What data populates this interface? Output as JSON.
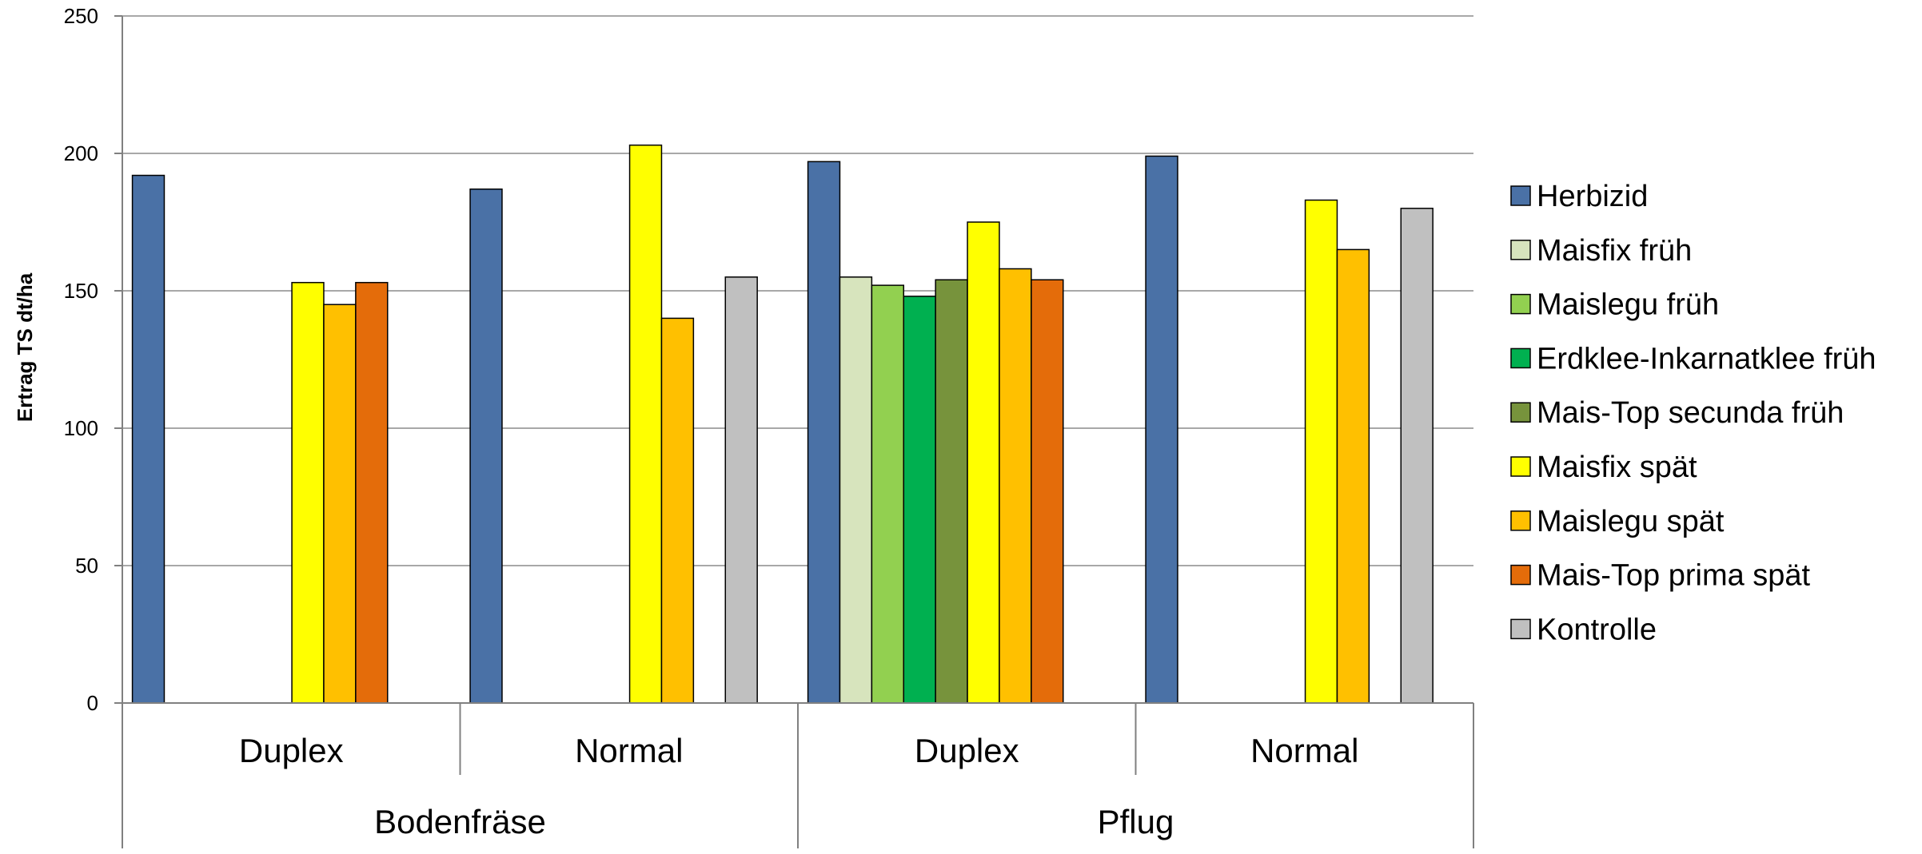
{
  "chart_data": {
    "type": "bar",
    "ylabel": "Ertrag TS dt/ha",
    "xlabel": "",
    "ylim": [
      0,
      250
    ],
    "yticks": [
      0,
      50,
      100,
      150,
      200,
      250
    ],
    "grid": true,
    "legend_position": "right",
    "groups": [
      {
        "label": "Bodenfräse",
        "subgroups": [
          "Duplex",
          "Normal"
        ]
      },
      {
        "label": "Pflug",
        "subgroups": [
          "Duplex",
          "Normal"
        ]
      }
    ],
    "categories": [
      "Duplex",
      "Normal",
      "Duplex",
      "Normal"
    ],
    "series": [
      {
        "name": "Herbizid",
        "color": "#4A71A6",
        "values": [
          192,
          187,
          197,
          199
        ]
      },
      {
        "name": "Maisfix früh",
        "color": "#D7E4BD",
        "values": [
          null,
          null,
          155,
          null
        ]
      },
      {
        "name": "Maislegu früh",
        "color": "#92D050",
        "values": [
          null,
          null,
          152,
          null
        ]
      },
      {
        "name": "Erdklee-Inkarnatklee früh",
        "color": "#00B050",
        "values": [
          null,
          null,
          148,
          null
        ]
      },
      {
        "name": "Mais-Top secunda früh",
        "color": "#77933C",
        "values": [
          null,
          null,
          154,
          null
        ]
      },
      {
        "name": "Maisfix spät",
        "color": "#FFFF00",
        "values": [
          153,
          203,
          175,
          183
        ]
      },
      {
        "name": "Maislegu spät",
        "color": "#FFC000",
        "values": [
          145,
          140,
          158,
          165
        ]
      },
      {
        "name": "Mais-Top prima spät",
        "color": "#E46C0A",
        "values": [
          153,
          null,
          154,
          null
        ]
      },
      {
        "name": "Kontrolle",
        "color": "#C0C0C0",
        "values": [
          null,
          155,
          null,
          180
        ]
      }
    ]
  }
}
